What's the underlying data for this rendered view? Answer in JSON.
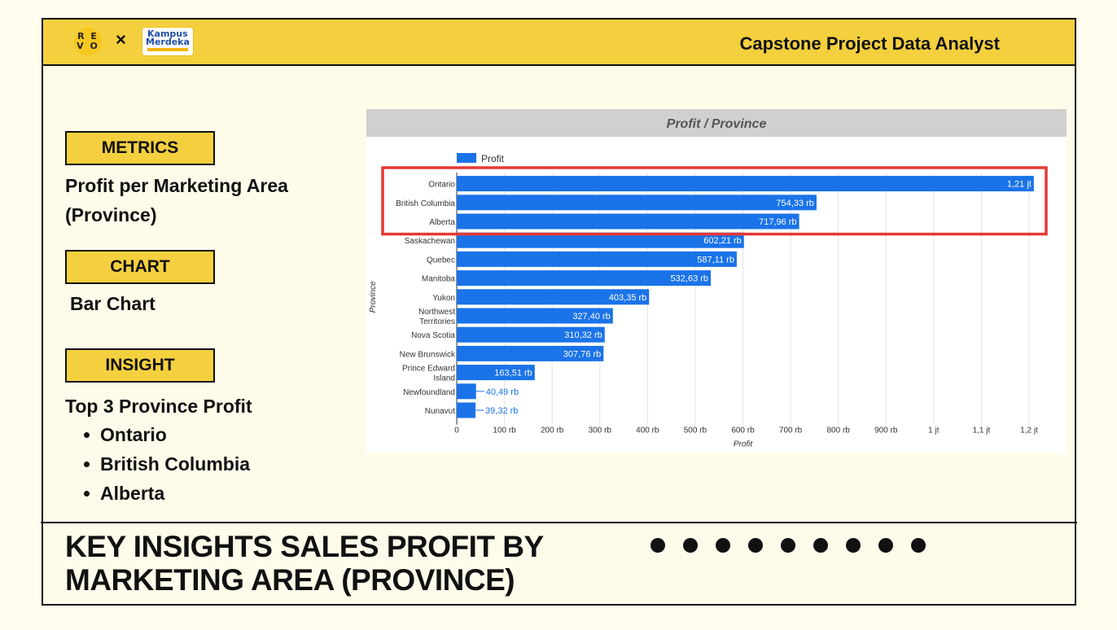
{
  "header": {
    "times": "×",
    "title": "Capstone Project Data Analyst",
    "logo_revo": "R E V O",
    "logo_km_line1": "Kampus",
    "logo_km_line2": "Merdeka"
  },
  "metrics": {
    "label": "METRICS",
    "text": "Profit per Marketing Area (Province)"
  },
  "chart_section": {
    "label": "CHART",
    "text": "Bar Chart"
  },
  "insight": {
    "label": "INSIGHT",
    "text": "Top 3 Province Profit",
    "items": [
      "Ontario",
      "British Columbia",
      "Alberta"
    ]
  },
  "footer": {
    "title_line1": "KEY INSIGHTS SALES PROFIT BY",
    "title_line2": "MARKETING AREA (PROVINCE)",
    "dot_count": 9
  },
  "colors": {
    "accent": "#f4d03f",
    "bar": "#1a73e8",
    "highlight": "#e53935"
  },
  "chart_data": {
    "type": "bar",
    "orientation": "horizontal",
    "title": "Profit / Province",
    "xlabel": "Profit",
    "ylabel": "Province",
    "legend": "top-left",
    "grid": true,
    "xlim": [
      0,
      1220000
    ],
    "xticks": [
      {
        "v": 0,
        "label": "0"
      },
      {
        "v": 100000,
        "label": "100 rb"
      },
      {
        "v": 200000,
        "label": "200 rb"
      },
      {
        "v": 300000,
        "label": "300 rb"
      },
      {
        "v": 400000,
        "label": "400 rb"
      },
      {
        "v": 500000,
        "label": "500 rb"
      },
      {
        "v": 600000,
        "label": "600 rb"
      },
      {
        "v": 700000,
        "label": "700 rb"
      },
      {
        "v": 800000,
        "label": "800 rb"
      },
      {
        "v": 900000,
        "label": "900 rb"
      },
      {
        "v": 1000000,
        "label": "1 jt"
      },
      {
        "v": 1100000,
        "label": "1,1 jt"
      },
      {
        "v": 1200000,
        "label": "1,2 jt"
      }
    ],
    "series": [
      {
        "name": "Profit",
        "categories": [
          [
            "Ontario"
          ],
          [
            "British Columbia"
          ],
          [
            "Alberta"
          ],
          [
            "Saskachewan"
          ],
          [
            "Quebec"
          ],
          [
            "Manitoba"
          ],
          [
            "Yukon"
          ],
          [
            "Northwest",
            "Territories"
          ],
          [
            "Nova Scotia"
          ],
          [
            "New Brunswick"
          ],
          [
            "Prince Edward",
            "Island"
          ],
          [
            "Newfoundland"
          ],
          [
            "Nunavut"
          ]
        ],
        "values": [
          1210000,
          754330,
          717960,
          602210,
          587110,
          532630,
          403350,
          327400,
          310320,
          307760,
          163510,
          40490,
          39320
        ],
        "labels": [
          "1,21 jt",
          "754,33 rb",
          "717,96 rb",
          "602,21 rb",
          "587,11 rb",
          "532,63 rb",
          "403,35 rb",
          "327,40 rb",
          "310,32 rb",
          "307,76 rb",
          "163,51 rb",
          "40,49 rb",
          "39,32 rb"
        ]
      }
    ],
    "highlight": {
      "note": "top 3 boxed",
      "count": 3
    }
  }
}
